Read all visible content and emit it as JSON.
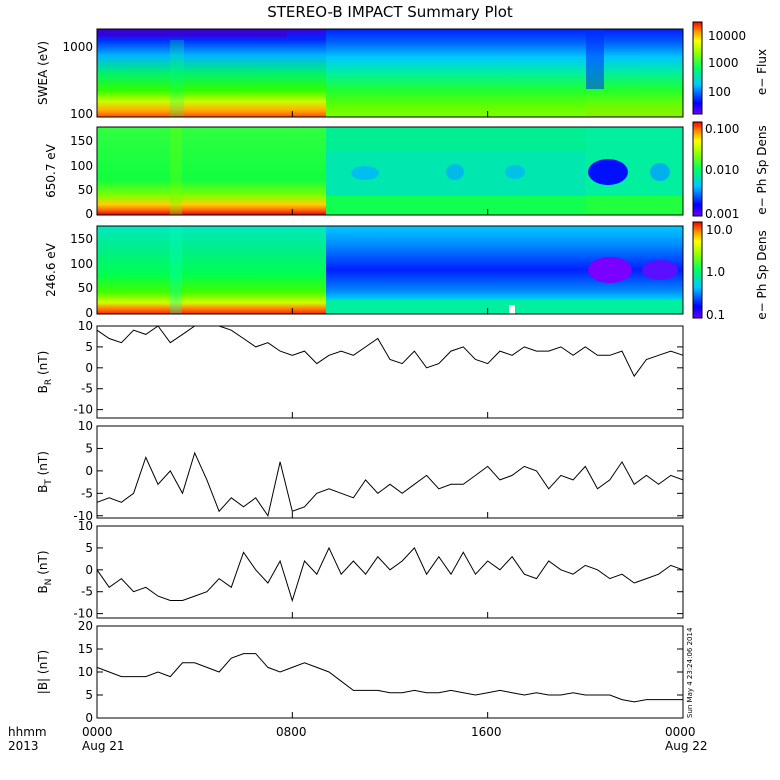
{
  "chart_data": {
    "title": "STEREO-B IMPACT Summary Plot",
    "x_axis": {
      "ticks": [
        "0000",
        "0800",
        "1600",
        "0000"
      ],
      "tick_hours": [
        0,
        8,
        16,
        24
      ],
      "row2": [
        "Aug 21",
        "Aug 22"
      ],
      "corner_top": "hhmm",
      "corner_bottom": "2013"
    },
    "timestamp": "Sun May  4 23:24:06 2014",
    "panels": [
      {
        "type": "heatmap",
        "ylabel": "SWEA (eV)",
        "ytick_labels": [
          "1000",
          "100"
        ],
        "colorbar": {
          "label": "e− Flux",
          "tick_labels": [
            "10000",
            "1000",
            "100"
          ]
        }
      },
      {
        "type": "heatmap",
        "ylabel": "650.7 eV",
        "ytick_labels": [
          "150",
          "100",
          "50",
          "0"
        ],
        "ylim": [
          0,
          180
        ],
        "colorbar": {
          "label": "e− Ph Sp Dens",
          "tick_labels": [
            "0.100",
            "0.010",
            "0.001"
          ]
        }
      },
      {
        "type": "heatmap",
        "ylabel": "246.6 eV",
        "ytick_labels": [
          "150",
          "100",
          "50",
          "0"
        ],
        "ylim": [
          0,
          180
        ],
        "colorbar": {
          "label": "e− Ph Sp Dens",
          "tick_labels": [
            "10.0",
            "1.0",
            "0.1"
          ]
        }
      },
      {
        "type": "line",
        "ylabel_base": "B",
        "ylabel_sub": "R",
        "ylabel_unit": " (nT)",
        "ylim": [
          -12,
          10
        ],
        "ytick_labels": [
          "10",
          "5",
          "0",
          "-5",
          "-10"
        ],
        "ytick_values": [
          10,
          5,
          0,
          -5,
          -10
        ],
        "x_hours": [
          0,
          0.5,
          1,
          1.5,
          2,
          2.5,
          3,
          3.5,
          4,
          4.5,
          5,
          5.5,
          6,
          6.5,
          7,
          7.5,
          8,
          8.5,
          9,
          9.5,
          10,
          10.5,
          11,
          11.5,
          12,
          12.5,
          13,
          13.5,
          14,
          14.5,
          15,
          15.5,
          16,
          16.5,
          17,
          17.5,
          18,
          18.5,
          19,
          19.5,
          20,
          20.5,
          21,
          21.5,
          22,
          22.5,
          23,
          23.5,
          24
        ],
        "values": [
          9,
          7,
          6,
          9,
          8,
          10,
          6,
          8,
          10,
          10,
          10,
          9,
          7,
          5,
          6,
          4,
          3,
          4,
          1,
          3,
          4,
          3,
          5,
          7,
          2,
          1,
          4,
          0,
          1,
          4,
          5,
          2,
          1,
          4,
          3,
          5,
          4,
          4,
          5,
          3,
          5,
          3,
          3,
          4,
          -2,
          2,
          3,
          4,
          3
        ]
      },
      {
        "type": "line",
        "ylabel_base": "B",
        "ylabel_sub": "T",
        "ylabel_unit": " (nT)",
        "ylim": [
          -10.5,
          10
        ],
        "ytick_labels": [
          "10",
          "5",
          "0",
          "-5",
          "-10"
        ],
        "ytick_values": [
          10,
          5,
          0,
          -5,
          -10
        ],
        "x_hours": [
          0,
          0.5,
          1,
          1.5,
          2,
          2.5,
          3,
          3.5,
          4,
          4.5,
          5,
          5.5,
          6,
          6.5,
          7,
          7.5,
          8,
          8.5,
          9,
          9.5,
          10,
          10.5,
          11,
          11.5,
          12,
          12.5,
          13,
          13.5,
          14,
          14.5,
          15,
          15.5,
          16,
          16.5,
          17,
          17.5,
          18,
          18.5,
          19,
          19.5,
          20,
          20.5,
          21,
          21.5,
          22,
          22.5,
          23,
          23.5,
          24
        ],
        "values": [
          -7,
          -6,
          -7,
          -5,
          3,
          -3,
          0,
          -5,
          4,
          -2,
          -9,
          -6,
          -8,
          -6,
          -10,
          2,
          -9,
          -8,
          -5,
          -4,
          -5,
          -6,
          -2,
          -5,
          -3,
          -5,
          -3,
          -1,
          -4,
          -3,
          -3,
          -1,
          1,
          -2,
          -1,
          1,
          0,
          -4,
          -1,
          -2,
          1,
          -4,
          -2,
          2,
          -3,
          -1,
          -3,
          -1,
          -2
        ]
      },
      {
        "type": "line",
        "ylabel_base": "B",
        "ylabel_sub": "N",
        "ylabel_unit": " (nT)",
        "ylim": [
          -11,
          10
        ],
        "ytick_labels": [
          "10",
          "5",
          "0",
          "-5",
          "-10"
        ],
        "ytick_values": [
          10,
          5,
          0,
          -5,
          -10
        ],
        "x_hours": [
          0,
          0.5,
          1,
          1.5,
          2,
          2.5,
          3,
          3.5,
          4,
          4.5,
          5,
          5.5,
          6,
          6.5,
          7,
          7.5,
          8,
          8.5,
          9,
          9.5,
          10,
          10.5,
          11,
          11.5,
          12,
          12.5,
          13,
          13.5,
          14,
          14.5,
          15,
          15.5,
          16,
          16.5,
          17,
          17.5,
          18,
          18.5,
          19,
          19.5,
          20,
          20.5,
          21,
          21.5,
          22,
          22.5,
          23,
          23.5,
          24
        ],
        "values": [
          0,
          -4,
          -2,
          -5,
          -4,
          -6,
          -7,
          -7,
          -6,
          -5,
          -2,
          -4,
          4,
          0,
          -3,
          2,
          -7,
          2,
          -1,
          5,
          -1,
          2,
          -1,
          3,
          0,
          2,
          5,
          -1,
          3,
          -1,
          4,
          -1,
          2,
          0,
          3,
          -1,
          -2,
          2,
          0,
          -1,
          1,
          0,
          -2,
          -1,
          -3,
          -2,
          -1,
          1,
          0
        ]
      },
      {
        "type": "line",
        "ylabel": "|B| (nT)",
        "ylim": [
          0,
          20
        ],
        "ytick_labels": [
          "20",
          "15",
          "10",
          "5",
          "0"
        ],
        "ytick_values": [
          20,
          15,
          10,
          5,
          0
        ],
        "x_hours": [
          0,
          0.5,
          1,
          1.5,
          2,
          2.5,
          3,
          3.5,
          4,
          4.5,
          5,
          5.5,
          6,
          6.5,
          7,
          7.5,
          8,
          8.5,
          9,
          9.5,
          10,
          10.5,
          11,
          11.5,
          12,
          12.5,
          13,
          13.5,
          14,
          14.5,
          15,
          15.5,
          16,
          16.5,
          17,
          17.5,
          18,
          18.5,
          19,
          19.5,
          20,
          20.5,
          21,
          21.5,
          22,
          22.5,
          23,
          23.5,
          24
        ],
        "values": [
          11,
          10,
          9,
          9,
          9,
          10,
          9,
          12,
          12,
          11,
          10,
          13,
          14,
          14,
          11,
          10,
          11,
          12,
          11,
          10,
          8,
          6,
          6,
          6,
          5.5,
          5.5,
          6,
          5.5,
          5.5,
          6,
          5.5,
          5,
          5.5,
          6,
          5.5,
          5,
          5.5,
          5,
          5,
          5.5,
          5,
          5,
          5,
          4,
          3.5,
          4,
          4,
          4,
          4
        ]
      }
    ]
  }
}
